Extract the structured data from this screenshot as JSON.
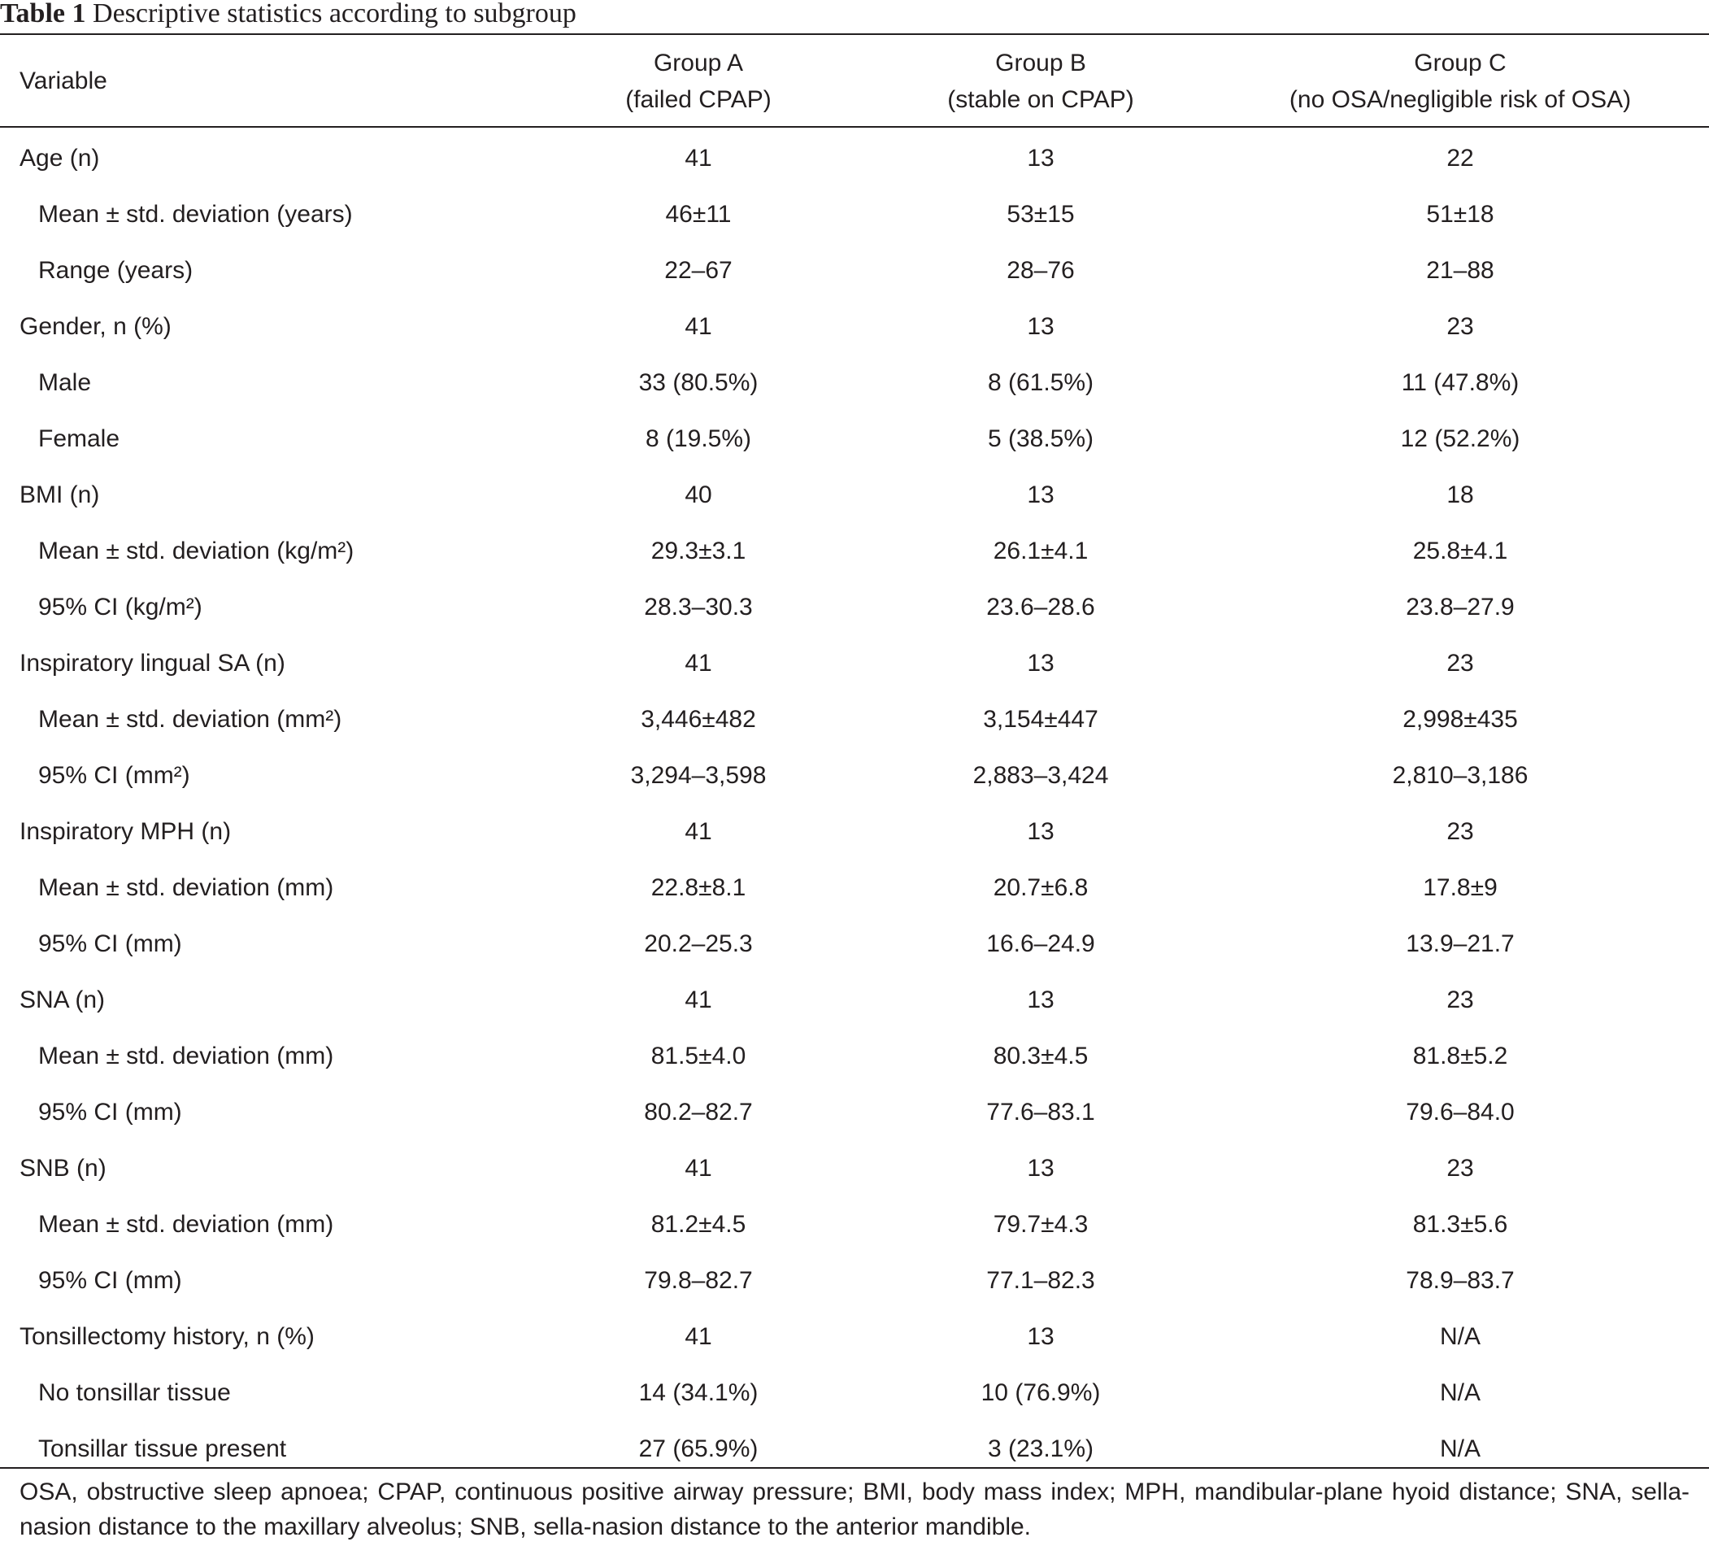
{
  "caption": {
    "label": "Table 1",
    "title": "Descriptive statistics according to subgroup"
  },
  "header": {
    "variable": "Variable",
    "groups": [
      {
        "line1": "Group A",
        "line2": "(failed CPAP)"
      },
      {
        "line1": "Group B",
        "line2": "(stable on CPAP)"
      },
      {
        "line1": "Group C",
        "line2": "(no OSA/negligible risk of OSA)"
      }
    ]
  },
  "rows": [
    {
      "label": "Age (n)",
      "sub": false,
      "values": [
        "41",
        "13",
        "22"
      ]
    },
    {
      "label": "Mean ± std. deviation (years)",
      "sub": true,
      "values": [
        "46±11",
        "53±15",
        "51±18"
      ]
    },
    {
      "label": "Range (years)",
      "sub": true,
      "values": [
        "22–67",
        "28–76",
        "21–88"
      ]
    },
    {
      "label": "Gender, n (%)",
      "sub": false,
      "values": [
        "41",
        "13",
        "23"
      ]
    },
    {
      "label": "Male",
      "sub": true,
      "values": [
        "33 (80.5%)",
        "8 (61.5%)",
        "11 (47.8%)"
      ]
    },
    {
      "label": "Female",
      "sub": true,
      "values": [
        "8 (19.5%)",
        "5 (38.5%)",
        "12 (52.2%)"
      ]
    },
    {
      "label": "BMI (n)",
      "sub": false,
      "values": [
        "40",
        "13",
        "18"
      ]
    },
    {
      "label": "Mean ± std. deviation (kg/m²)",
      "sub": true,
      "values": [
        "29.3±3.1",
        "26.1±4.1",
        "25.8±4.1"
      ]
    },
    {
      "label": "95% CI (kg/m²)",
      "sub": true,
      "values": [
        "28.3–30.3",
        "23.6–28.6",
        "23.8–27.9"
      ]
    },
    {
      "label": "Inspiratory lingual SA (n)",
      "sub": false,
      "values": [
        "41",
        "13",
        "23"
      ]
    },
    {
      "label": "Mean ± std. deviation (mm²)",
      "sub": true,
      "values": [
        "3,446±482",
        "3,154±447",
        "2,998±435"
      ]
    },
    {
      "label": "95% CI (mm²)",
      "sub": true,
      "values": [
        "3,294–3,598",
        "2,883–3,424",
        "2,810–3,186"
      ]
    },
    {
      "label": "Inspiratory MPH (n)",
      "sub": false,
      "values": [
        "41",
        "13",
        "23"
      ]
    },
    {
      "label": "Mean ± std. deviation (mm)",
      "sub": true,
      "values": [
        "22.8±8.1",
        "20.7±6.8",
        "17.8±9"
      ]
    },
    {
      "label": "95% CI (mm)",
      "sub": true,
      "values": [
        "20.2–25.3",
        "16.6–24.9",
        "13.9–21.7"
      ]
    },
    {
      "label": "SNA (n)",
      "sub": false,
      "values": [
        "41",
        "13",
        "23"
      ]
    },
    {
      "label": "Mean ± std. deviation (mm)",
      "sub": true,
      "values": [
        "81.5±4.0",
        "80.3±4.5",
        "81.8±5.2"
      ]
    },
    {
      "label": "95% CI (mm)",
      "sub": true,
      "values": [
        "80.2–82.7",
        "77.6–83.1",
        "79.6–84.0"
      ]
    },
    {
      "label": "SNB (n)",
      "sub": false,
      "values": [
        "41",
        "13",
        "23"
      ]
    },
    {
      "label": "Mean ± std. deviation (mm)",
      "sub": true,
      "values": [
        "81.2±4.5",
        "79.7±4.3",
        "81.3±5.6"
      ]
    },
    {
      "label": "95% CI (mm)",
      "sub": true,
      "values": [
        "79.8–82.7",
        "77.1–82.3",
        "78.9–83.7"
      ]
    },
    {
      "label": "Tonsillectomy history, n (%)",
      "sub": false,
      "values": [
        "41",
        "13",
        "N/A"
      ]
    },
    {
      "label": "No tonsillar tissue",
      "sub": true,
      "values": [
        "14 (34.1%)",
        "10 (76.9%)",
        "N/A"
      ]
    },
    {
      "label": "Tonsillar tissue present",
      "sub": true,
      "values": [
        "27 (65.9%)",
        "3 (23.1%)",
        "N/A"
      ]
    }
  ],
  "footnote": "OSA, obstructive sleep apnoea; CPAP, continuous positive airway pressure; BMI, body mass index; MPH, mandibular-plane hyoid distance; SNA, sella-nasion distance to the maxillary alveolus; SNB, sella-nasion distance to the anterior mandible."
}
